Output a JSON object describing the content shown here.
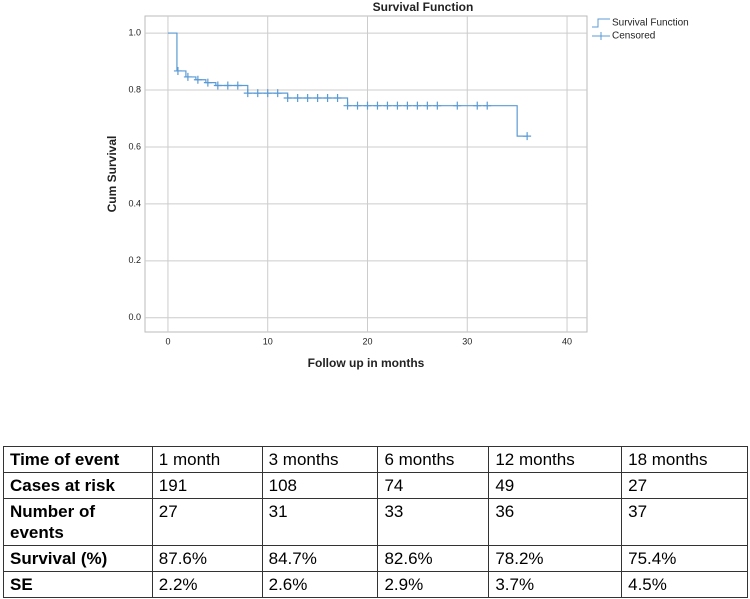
{
  "chart_data": {
    "type": "step",
    "title": "Survival Function",
    "xlabel": "Follow up in months",
    "ylabel": "Cum Survival",
    "xlim": [
      -2.3,
      42
    ],
    "xticks": [
      0,
      10,
      20,
      30,
      40
    ],
    "ylim": [
      -0.05,
      1.06
    ],
    "yticks": [
      {
        "value": 0,
        "label": "0.0"
      },
      0.2,
      0.4,
      0.6,
      0.8,
      {
        "value": 1,
        "label": "1.0"
      }
    ],
    "grid": true,
    "legend": "top-right",
    "series": [
      {
        "name": "Survival Function",
        "color": "#5b9bd5",
        "x": [
          0,
          0.9,
          1.8,
          2.8,
          3.8,
          4.8,
          8,
          12,
          18,
          35,
          36
        ],
        "values": [
          1.0,
          0.867,
          0.846,
          0.836,
          0.826,
          0.816,
          0.789,
          0.772,
          0.745,
          0.638,
          0.638
        ]
      },
      {
        "name": "Censored",
        "color": "#5b9bd5",
        "marker": "plus",
        "x": [
          1,
          2,
          3,
          4,
          5,
          6,
          7,
          8,
          9,
          10,
          11,
          12,
          13,
          14,
          15,
          16,
          17,
          18,
          19,
          20,
          21,
          22,
          23,
          24,
          25,
          26,
          27,
          29,
          31,
          32,
          36
        ],
        "values": [
          0.867,
          0.846,
          0.836,
          0.826,
          0.816,
          0.816,
          0.816,
          0.789,
          0.789,
          0.789,
          0.789,
          0.772,
          0.772,
          0.772,
          0.772,
          0.772,
          0.772,
          0.745,
          0.745,
          0.745,
          0.745,
          0.745,
          0.745,
          0.745,
          0.745,
          0.745,
          0.745,
          0.745,
          0.745,
          0.745,
          0.638
        ]
      }
    ]
  },
  "table": {
    "header": [
      "Time of event",
      "1 month",
      "3 months",
      "6 months",
      "12 months",
      "18 months"
    ],
    "rows": [
      [
        "Cases at risk",
        "191",
        "108",
        "74",
        "49",
        "27"
      ],
      [
        "Number of events",
        "27",
        "31",
        "33",
        "36",
        "37"
      ],
      [
        "Survival (%)",
        "87.6%",
        "84.7%",
        "82.6%",
        "78.2%",
        "75.4%"
      ],
      [
        "SE",
        "2.2%",
        "2.6%",
        "2.9%",
        "3.7%",
        "4.5%"
      ]
    ]
  }
}
